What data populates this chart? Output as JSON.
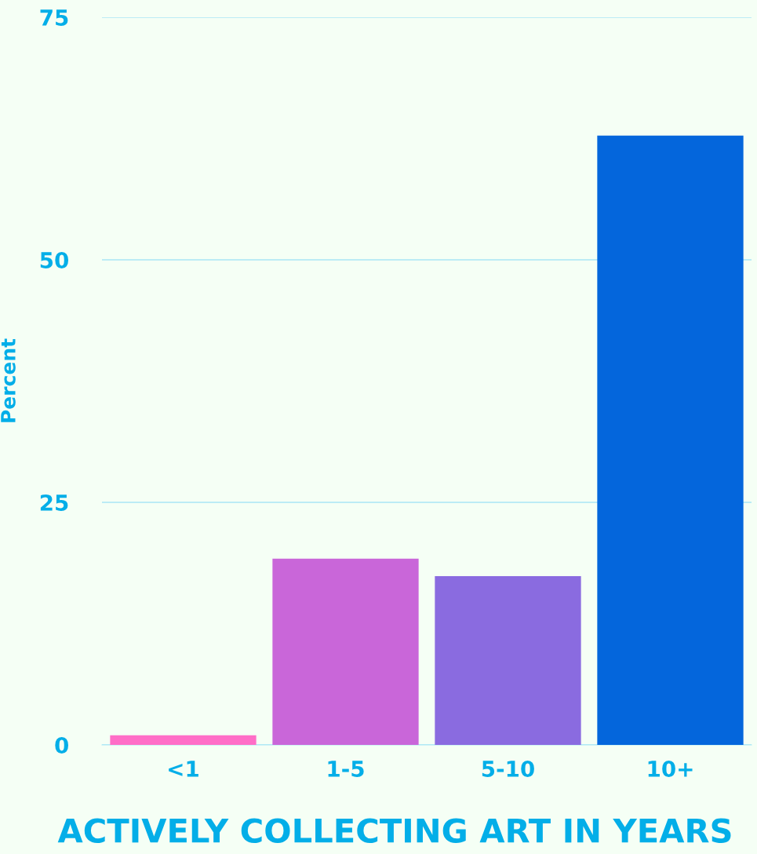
{
  "chart_data": {
    "type": "bar",
    "xlabel": "ACTIVELY COLLECTING ART IN YEARS",
    "ylabel": "Percent",
    "categories": [
      "<1",
      "1-5",
      "5-10",
      "10+"
    ],
    "values": [
      1.0,
      19.2,
      17.4,
      62.8
    ],
    "colors": [
      "#ff6ec7",
      "#c966d9",
      "#8a6be0",
      "#0466dc"
    ],
    "ylim": [
      0,
      75
    ],
    "yticks": [
      0,
      25,
      50,
      75
    ],
    "grid": "y"
  }
}
